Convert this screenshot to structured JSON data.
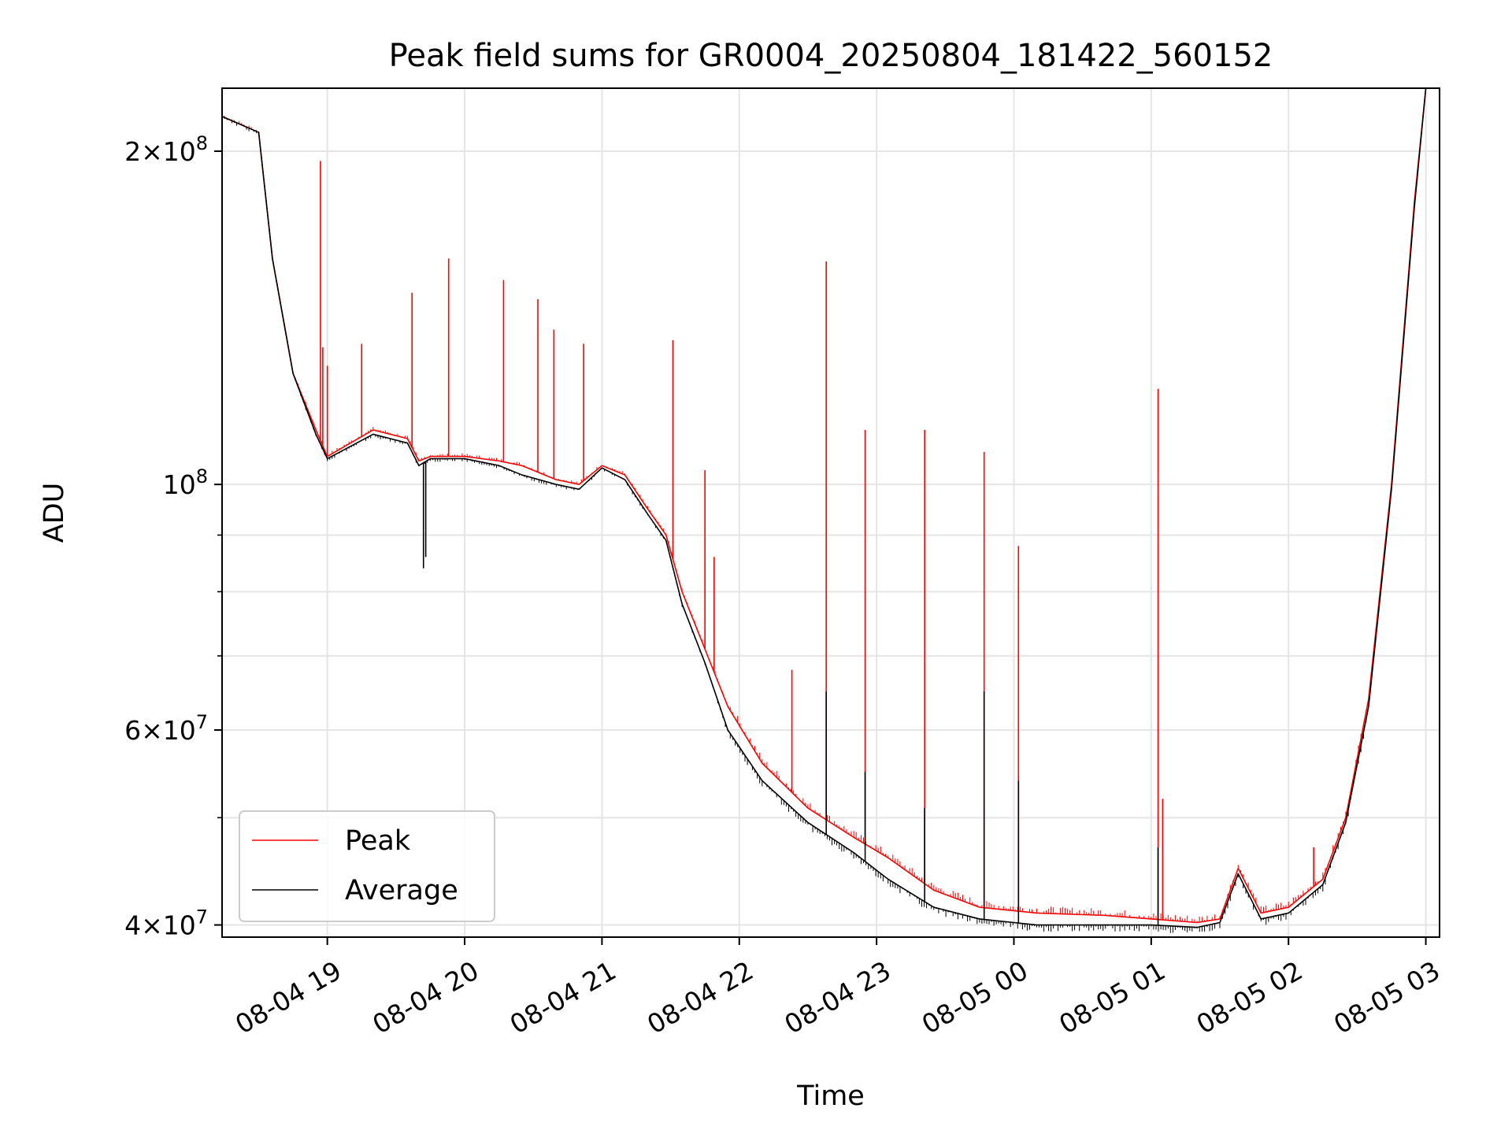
{
  "chart_data": {
    "type": "line",
    "title": "Peak field sums for GR0004_20250804_181422_560152",
    "xlabel": "Time",
    "ylabel": "ADU",
    "yscale": "log",
    "ylim": [
      39000000,
      228000000
    ],
    "xlim": [
      "2025-08-04 18:14",
      "2025-08-05 03:06"
    ],
    "grid": true,
    "legend_position": "lower-left",
    "x_ticks": [
      "08-04 19",
      "08-04 20",
      "08-04 21",
      "08-04 22",
      "08-04 23",
      "08-05 00",
      "08-05 01",
      "08-05 02",
      "08-05 03"
    ],
    "y_ticks": [
      {
        "value": 40000000,
        "mantissa": "4",
        "exponent": "7"
      },
      {
        "value": 60000000,
        "mantissa": "6",
        "exponent": "7"
      },
      {
        "value": 100000000,
        "mantissa": "",
        "exponent": "8"
      },
      {
        "value": 200000000,
        "mantissa": "2",
        "exponent": "8"
      }
    ],
    "series": [
      {
        "name": "Peak",
        "color": "#ff0000",
        "x": [
          "2025-08-04 18:14",
          "2025-08-04 18:30",
          "2025-08-04 18:36",
          "2025-08-04 18:45",
          "2025-08-04 18:55",
          "2025-08-04 19:00",
          "2025-08-04 19:20",
          "2025-08-04 19:35",
          "2025-08-04 19:40",
          "2025-08-04 19:45",
          "2025-08-04 20:00",
          "2025-08-04 20:15",
          "2025-08-04 20:25",
          "2025-08-04 20:40",
          "2025-08-04 20:50",
          "2025-08-04 21:00",
          "2025-08-04 21:10",
          "2025-08-04 21:20",
          "2025-08-04 21:28",
          "2025-08-04 21:35",
          "2025-08-04 21:45",
          "2025-08-04 21:55",
          "2025-08-04 22:10",
          "2025-08-04 22:30",
          "2025-08-04 22:50",
          "2025-08-04 23:05",
          "2025-08-04 23:25",
          "2025-08-04 23:45",
          "2025-08-05 00:10",
          "2025-08-05 00:40",
          "2025-08-05 01:00",
          "2025-08-05 01:20",
          "2025-08-05 01:30",
          "2025-08-05 01:38",
          "2025-08-05 01:48",
          "2025-08-05 02:00",
          "2025-08-05 02:15",
          "2025-08-05 02:25",
          "2025-08-05 02:35",
          "2025-08-05 02:45",
          "2025-08-05 02:55",
          "2025-08-05 03:00"
        ],
        "values": [
          215000000,
          208000000,
          160000000,
          126000000,
          112000000,
          106000000,
          112000000,
          110000000,
          105000000,
          106000000,
          106000000,
          105000000,
          104000000,
          101000000,
          100000000,
          104000000,
          102000000,
          95000000,
          90000000,
          80000000,
          71000000,
          63000000,
          56000000,
          51000000,
          48000000,
          46000000,
          43000000,
          41500000,
          41000000,
          40800000,
          40500000,
          40200000,
          40500000,
          45000000,
          41000000,
          41500000,
          44000000,
          50000000,
          64000000,
          100000000,
          180000000,
          228000000
        ],
        "spikes": [
          {
            "x": "2025-08-04 18:30",
            "y": 207000000
          },
          {
            "x": "2025-08-04 18:57",
            "y": 196000000
          },
          {
            "x": "2025-08-04 18:58",
            "y": 133000000
          },
          {
            "x": "2025-08-04 19:00",
            "y": 128000000
          },
          {
            "x": "2025-08-04 19:15",
            "y": 134000000
          },
          {
            "x": "2025-08-04 19:37",
            "y": 149000000
          },
          {
            "x": "2025-08-04 19:53",
            "y": 160000000
          },
          {
            "x": "2025-08-04 20:17",
            "y": 153000000
          },
          {
            "x": "2025-08-04 20:32",
            "y": 147000000
          },
          {
            "x": "2025-08-04 20:39",
            "y": 138000000
          },
          {
            "x": "2025-08-04 20:52",
            "y": 134000000
          },
          {
            "x": "2025-08-04 21:31",
            "y": 135000000
          },
          {
            "x": "2025-08-04 21:45",
            "y": 103000000
          },
          {
            "x": "2025-08-04 21:49",
            "y": 86000000
          },
          {
            "x": "2025-08-04 22:23",
            "y": 68000000
          },
          {
            "x": "2025-08-04 22:38",
            "y": 159000000
          },
          {
            "x": "2025-08-04 22:55",
            "y": 112000000
          },
          {
            "x": "2025-08-04 23:21",
            "y": 112000000
          },
          {
            "x": "2025-08-04 23:47",
            "y": 107000000
          },
          {
            "x": "2025-08-05 00:02",
            "y": 88000000
          },
          {
            "x": "2025-08-05 01:03",
            "y": 122000000
          },
          {
            "x": "2025-08-05 01:05",
            "y": 52000000
          },
          {
            "x": "2025-08-05 02:11",
            "y": 47000000
          }
        ]
      },
      {
        "name": "Average",
        "color": "#000000",
        "x": [
          "2025-08-04 18:14",
          "2025-08-04 18:30",
          "2025-08-04 18:36",
          "2025-08-04 18:45",
          "2025-08-04 18:55",
          "2025-08-04 19:00",
          "2025-08-04 19:20",
          "2025-08-04 19:35",
          "2025-08-04 19:40",
          "2025-08-04 19:45",
          "2025-08-04 20:00",
          "2025-08-04 20:15",
          "2025-08-04 20:25",
          "2025-08-04 20:40",
          "2025-08-04 20:50",
          "2025-08-04 21:00",
          "2025-08-04 21:10",
          "2025-08-04 21:20",
          "2025-08-04 21:28",
          "2025-08-04 21:35",
          "2025-08-04 21:45",
          "2025-08-04 21:55",
          "2025-08-04 22:10",
          "2025-08-04 22:30",
          "2025-08-04 22:50",
          "2025-08-04 23:05",
          "2025-08-04 23:25",
          "2025-08-04 23:45",
          "2025-08-05 00:10",
          "2025-08-05 00:40",
          "2025-08-05 01:00",
          "2025-08-05 01:20",
          "2025-08-05 01:30",
          "2025-08-05 01:38",
          "2025-08-05 01:48",
          "2025-08-05 02:00",
          "2025-08-05 02:15",
          "2025-08-05 02:25",
          "2025-08-05 02:35",
          "2025-08-05 02:45",
          "2025-08-05 02:55",
          "2025-08-05 03:00"
        ],
        "values": [
          215000000,
          208000000,
          160000000,
          126000000,
          111000000,
          105500000,
          111000000,
          109000000,
          104000000,
          105500000,
          105500000,
          104000000,
          102000000,
          100000000,
          99000000,
          103500000,
          101000000,
          94000000,
          89000000,
          78000000,
          69000000,
          60000000,
          54000000,
          49500000,
          46500000,
          44000000,
          41500000,
          40500000,
          40000000,
          40000000,
          40000000,
          39800000,
          40200000,
          44500000,
          40500000,
          41000000,
          43500000,
          49500000,
          63000000,
          99000000,
          178000000,
          228000000
        ],
        "spikes": [
          {
            "x": "2025-08-04 19:42",
            "y": 84000000
          },
          {
            "x": "2025-08-04 19:43",
            "y": 86000000
          },
          {
            "x": "2025-08-04 22:38",
            "y": 65000000
          },
          {
            "x": "2025-08-04 22:55",
            "y": 55000000
          },
          {
            "x": "2025-08-04 23:21",
            "y": 51000000
          },
          {
            "x": "2025-08-04 23:47",
            "y": 65000000
          },
          {
            "x": "2025-08-05 00:02",
            "y": 54000000
          },
          {
            "x": "2025-08-05 01:03",
            "y": 47000000
          }
        ]
      }
    ]
  }
}
